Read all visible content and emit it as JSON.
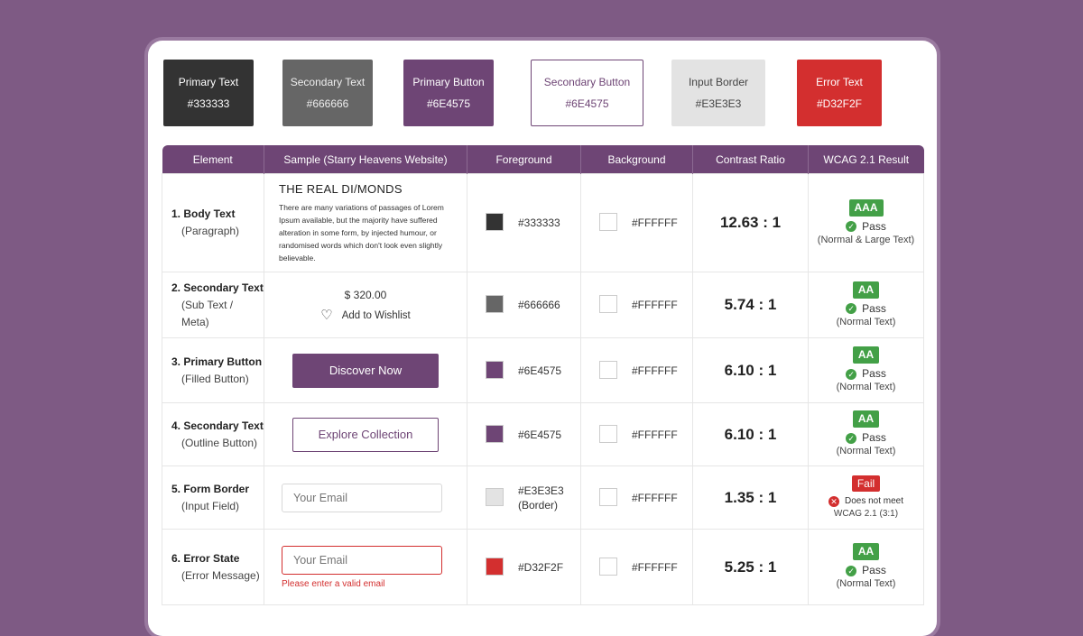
{
  "swatches": [
    {
      "name": "Primary Text",
      "hex": "#333333"
    },
    {
      "name": "Secondary Text",
      "hex": "#666666"
    },
    {
      "name": "Primary Button",
      "hex": "#6E4575"
    },
    {
      "name": "Secondary Button",
      "hex": "#6E4575"
    },
    {
      "name": "Input Border",
      "hex": "#E3E3E3"
    },
    {
      "name": "Error Text",
      "hex": "#D32F2F"
    }
  ],
  "table": {
    "headers": [
      "Element",
      "Sample (Starry Heavens Website)",
      "Foreground",
      "Background",
      "Contrast Ratio",
      "WCAG 2.1 Result"
    ],
    "rows": [
      {
        "element": "1. Body Text",
        "element_sub": "(Paragraph)",
        "sample_title": "THE REAL DI/MONDS",
        "sample_text": "There are many variations of passages of Lorem Ipsum available, but the majority have suffered alteration in some form, by injected humour, or randomised words which don't look even slightly believable.",
        "fg_color": "#333333",
        "fg_hex": "#333333",
        "bg_color": "#FFFFFF",
        "bg_hex": "#FFFFFF",
        "ratio": "12.63 : 1",
        "badge": "AAA",
        "status": "Pass",
        "note": "(Normal & Large Text)"
      },
      {
        "element": "2. Secondary Text",
        "element_sub": "(Sub Text / Meta)",
        "sample_price": "$ 320.00",
        "sample_wishlist": "Add to Wishlist",
        "fg_color": "#666666",
        "fg_hex": "#666666",
        "bg_color": "#FFFFFF",
        "bg_hex": "#FFFFFF",
        "ratio": "5.74 : 1",
        "badge": "AA",
        "status": "Pass",
        "note": "(Normal Text)"
      },
      {
        "element": "3. Primary Button",
        "element_sub": "(Filled Button)",
        "sample_button": "Discover Now",
        "fg_color": "#6E4575",
        "fg_hex": "#6E4575",
        "bg_color": "#FFFFFF",
        "bg_hex": "#FFFFFF",
        "ratio": "6.10 : 1",
        "badge": "AA",
        "status": "Pass",
        "note": "(Normal Text)"
      },
      {
        "element": "4. Secondary Text",
        "element_sub": "(Outline Button)",
        "sample_button": "Explore Collection",
        "fg_color": "#6E4575",
        "fg_hex": "#6E4575",
        "bg_color": "#FFFFFF",
        "bg_hex": "#FFFFFF",
        "ratio": "6.10 : 1",
        "badge": "AA",
        "status": "Pass",
        "note": "(Normal Text)"
      },
      {
        "element": "5. Form Border",
        "element_sub": "(Input Field)",
        "sample_placeholder": "Your Email",
        "fg_color": "#E3E3E3",
        "fg_hex": "#E3E3E3",
        "fg_hex_note": "(Border)",
        "bg_color": "#FFFFFF",
        "bg_hex": "#FFFFFF",
        "ratio": "1.35 : 1",
        "badge": "Fail",
        "status": "Does not meet",
        "note": "WCAG 2.1 (3:1)"
      },
      {
        "element": "6. Error State",
        "element_sub": "(Error Message)",
        "sample_placeholder": "Your Email",
        "sample_error": "Please enter a valid email",
        "fg_color": "#D32F2F",
        "fg_hex": "#D32F2F",
        "bg_color": "#FFFFFF",
        "bg_hex": "#FFFFFF",
        "ratio": "5.25 : 1",
        "badge": "AA",
        "status": "Pass",
        "note": "(Normal Text)"
      }
    ]
  }
}
